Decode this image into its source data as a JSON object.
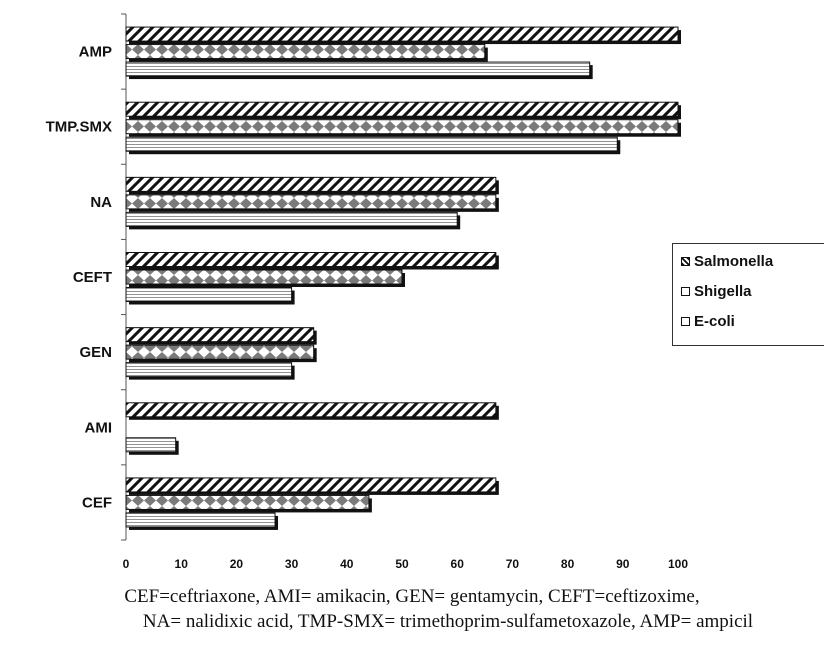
{
  "chart_data": {
    "type": "bar",
    "orientation": "horizontal",
    "categories": [
      "AMP",
      "TMP.SMX",
      "NA",
      "CEFT",
      "GEN",
      "AMI",
      "CEF"
    ],
    "series": [
      {
        "name": "Salmonella",
        "values": [
          100,
          100,
          67,
          67,
          34,
          67,
          67
        ],
        "pattern": "diagonal-stripes",
        "color": "#111111"
      },
      {
        "name": "Shigella",
        "values": [
          65,
          100,
          67,
          50,
          34,
          0,
          44
        ],
        "pattern": "diamond-checker",
        "color": "#777777"
      },
      {
        "name": "E-coli",
        "values": [
          84,
          89,
          60,
          30,
          30,
          9,
          27
        ],
        "pattern": "horizontal-lines",
        "color": "#111111"
      }
    ],
    "xlim": [
      0,
      100
    ],
    "xticks": [
      "0",
      "10",
      "20",
      "30",
      "40",
      "50",
      "60",
      "70",
      "80",
      "90",
      "100"
    ],
    "legend_position": "right",
    "grid": false
  },
  "legend": [
    "Salmonella",
    "Shigella",
    "E-coli"
  ],
  "caption": {
    "line1": "CEF=ceftriaxone, AMI= amikacin, GEN= gentamycin, CEFT=ceftizoxime,",
    "line2": "NA= nalidixic acid, TMP-SMX= trimethoprim-sulfametoxazole, AMP= ampicil"
  }
}
